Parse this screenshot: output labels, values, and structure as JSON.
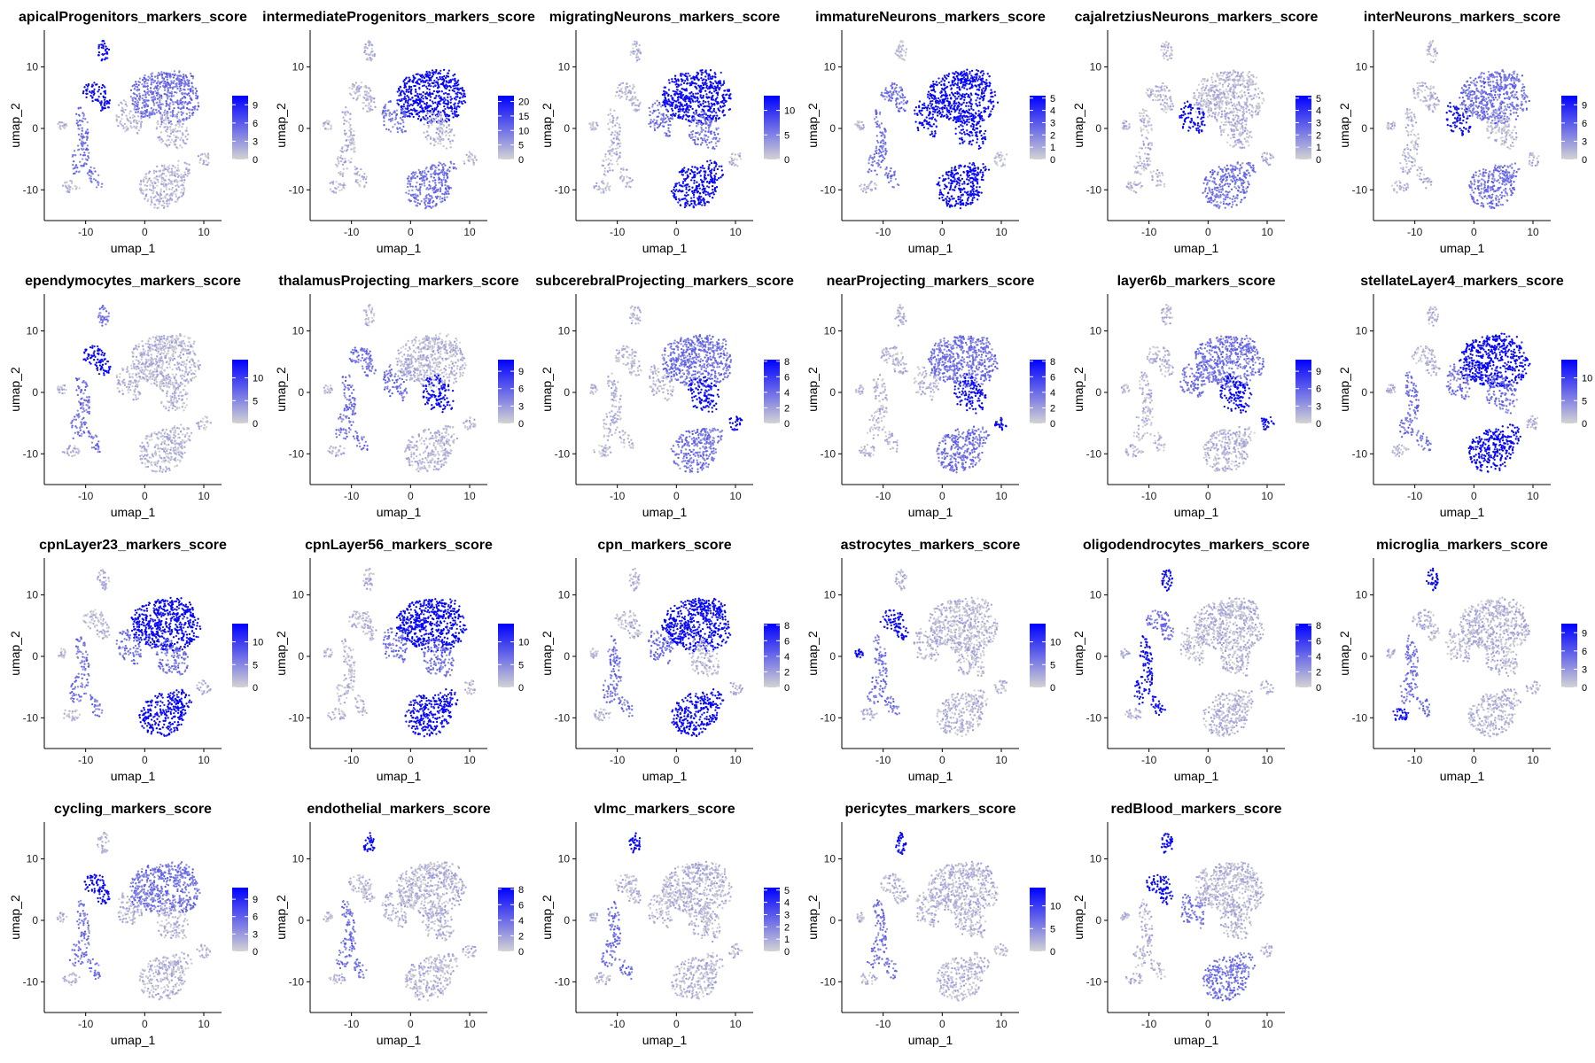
{
  "figure": {
    "rows": 4,
    "cols": 6
  },
  "chart_data": [
    {
      "type": "scatter",
      "title": "apicalProgenitors_markers_score",
      "xlabel": "umap_1",
      "ylabel": "umap_2",
      "xticks": [
        -10,
        0,
        10
      ],
      "yticks": [
        -10,
        0,
        10
      ],
      "xlim": [
        -17,
        13
      ],
      "ylim": [
        -15,
        16
      ],
      "legend_ticks": [
        0,
        3,
        6,
        9
      ],
      "score_max": 10.5,
      "high_regions": [
        "apical",
        "top-left-cluster"
      ],
      "mid_regions": [
        "left-branch",
        "large-top-cluster"
      ],
      "color_low": "#d3d3d3",
      "color_high": "#0000ff"
    },
    {
      "type": "scatter",
      "title": "intermediateProgenitors_markers_score",
      "xlabel": "umap_1",
      "ylabel": "umap_2",
      "xticks": [
        -10,
        0,
        10
      ],
      "yticks": [
        -10,
        0,
        10
      ],
      "xlim": [
        -17,
        13
      ],
      "ylim": [
        -15,
        16
      ],
      "legend_ticks": [
        0,
        5,
        10,
        15,
        20
      ],
      "score_max": 22,
      "high_regions": [
        "large-top-cluster"
      ],
      "mid_regions": [
        "middle-cluster",
        "bottom-cluster"
      ],
      "color_low": "#d3d3d3",
      "color_high": "#0000ff"
    },
    {
      "type": "scatter",
      "title": "migratingNeurons_markers_score",
      "xlabel": "umap_1",
      "ylabel": "umap_2",
      "xticks": [
        -10,
        0,
        10
      ],
      "yticks": [
        -10,
        0,
        10
      ],
      "xlim": [
        -17,
        13
      ],
      "ylim": [
        -15,
        16
      ],
      "legend_ticks": [
        0,
        5,
        10
      ],
      "score_max": 13,
      "high_regions": [
        "large-top-cluster",
        "bottom-cluster"
      ],
      "mid_regions": [
        "middle-cluster",
        "right-cluster"
      ],
      "color_low": "#d3d3d3",
      "color_high": "#0000ff"
    },
    {
      "type": "scatter",
      "title": "immatureNeurons_markers_score",
      "xlabel": "umap_1",
      "ylabel": "umap_2",
      "xticks": [
        -10,
        0,
        10
      ],
      "yticks": [
        -10,
        0,
        10
      ],
      "xlim": [
        -17,
        13
      ],
      "ylim": [
        -15,
        16
      ],
      "legend_ticks": [
        0,
        1,
        2,
        3,
        4,
        5
      ],
      "score_max": 5.2,
      "high_regions": [
        "large-top-cluster",
        "bottom-cluster",
        "middle-cluster",
        "right-cluster"
      ],
      "mid_regions": [
        "top-left-cluster",
        "left-branch"
      ],
      "color_low": "#d3d3d3",
      "color_high": "#0000ff"
    },
    {
      "type": "scatter",
      "title": "cajalretziusNeurons_markers_score",
      "xlabel": "umap_1",
      "ylabel": "umap_2",
      "xticks": [
        -10,
        0,
        10
      ],
      "yticks": [
        -10,
        0,
        10
      ],
      "xlim": [
        -17,
        13
      ],
      "ylim": [
        -15,
        16
      ],
      "legend_ticks": [
        0,
        1,
        2,
        3,
        4,
        5
      ],
      "score_max": 5.2,
      "high_regions": [
        "middle-cluster"
      ],
      "mid_regions": [
        "bottom-cluster"
      ],
      "color_low": "#d3d3d3",
      "color_high": "#0000ff"
    },
    {
      "type": "scatter",
      "title": "interNeurons_markers_score",
      "xlabel": "umap_1",
      "ylabel": "umap_2",
      "xticks": [
        -10,
        0,
        10
      ],
      "yticks": [
        -10,
        0,
        10
      ],
      "xlim": [
        -17,
        13
      ],
      "ylim": [
        -15,
        16
      ],
      "legend_ticks": [
        0,
        3,
        6,
        9
      ],
      "score_max": 10.5,
      "high_regions": [
        "middle-cluster"
      ],
      "mid_regions": [
        "bottom-cluster",
        "large-top-cluster"
      ],
      "color_low": "#d3d3d3",
      "color_high": "#0000ff"
    },
    {
      "type": "scatter",
      "title": "ependymocytes_markers_score",
      "xlabel": "umap_1",
      "ylabel": "umap_2",
      "xticks": [
        -10,
        0,
        10
      ],
      "yticks": [
        -10,
        0,
        10
      ],
      "xlim": [
        -17,
        13
      ],
      "ylim": [
        -15,
        16
      ],
      "legend_ticks": [
        0,
        5,
        10
      ],
      "score_max": 14,
      "high_regions": [
        "top-left-cluster"
      ],
      "mid_regions": [
        "left-branch",
        "apical"
      ],
      "color_low": "#d3d3d3",
      "color_high": "#0000ff"
    },
    {
      "type": "scatter",
      "title": "thalamusProjecting_markers_score",
      "xlabel": "umap_1",
      "ylabel": "umap_2",
      "xticks": [
        -10,
        0,
        10
      ],
      "yticks": [
        -10,
        0,
        10
      ],
      "xlim": [
        -17,
        13
      ],
      "ylim": [
        -15,
        16
      ],
      "legend_ticks": [
        0,
        3,
        6,
        9
      ],
      "score_max": 11,
      "high_regions": [
        "right-cluster"
      ],
      "mid_regions": [
        "middle-cluster",
        "left-branch",
        "top-left-cluster"
      ],
      "color_low": "#d3d3d3",
      "color_high": "#0000ff"
    },
    {
      "type": "scatter",
      "title": "subcerebralProjecting_markers_score",
      "xlabel": "umap_1",
      "ylabel": "umap_2",
      "xticks": [
        -10,
        0,
        10
      ],
      "yticks": [
        -10,
        0,
        10
      ],
      "xlim": [
        -17,
        13
      ],
      "ylim": [
        -15,
        16
      ],
      "legend_ticks": [
        0,
        2,
        4,
        6,
        8
      ],
      "score_max": 8.2,
      "high_regions": [
        "right-cluster",
        "far-right-blob"
      ],
      "mid_regions": [
        "large-top-cluster",
        "bottom-cluster"
      ],
      "color_low": "#d3d3d3",
      "color_high": "#0000ff"
    },
    {
      "type": "scatter",
      "title": "nearProjecting_markers_score",
      "xlabel": "umap_1",
      "ylabel": "umap_2",
      "xticks": [
        -10,
        0,
        10
      ],
      "yticks": [
        -10,
        0,
        10
      ],
      "xlim": [
        -17,
        13
      ],
      "ylim": [
        -15,
        16
      ],
      "legend_ticks": [
        0,
        2,
        4,
        6,
        8
      ],
      "score_max": 8.2,
      "high_regions": [
        "right-cluster",
        "far-right-blob"
      ],
      "mid_regions": [
        "large-top-cluster",
        "bottom-cluster"
      ],
      "color_low": "#d3d3d3",
      "color_high": "#0000ff"
    },
    {
      "type": "scatter",
      "title": "layer6b_markers_score",
      "xlabel": "umap_1",
      "ylabel": "umap_2",
      "xticks": [
        -10,
        0,
        10
      ],
      "yticks": [
        -10,
        0,
        10
      ],
      "xlim": [
        -17,
        13
      ],
      "ylim": [
        -15,
        16
      ],
      "legend_ticks": [
        0,
        3,
        6,
        9
      ],
      "score_max": 11,
      "high_regions": [
        "right-cluster",
        "far-right-blob"
      ],
      "mid_regions": [
        "middle-cluster",
        "large-top-cluster"
      ],
      "color_low": "#d3d3d3",
      "color_high": "#0000ff"
    },
    {
      "type": "scatter",
      "title": "stellateLayer4_markers_score",
      "xlabel": "umap_1",
      "ylabel": "umap_2",
      "xticks": [
        -10,
        0,
        10
      ],
      "yticks": [
        -10,
        0,
        10
      ],
      "xlim": [
        -17,
        13
      ],
      "ylim": [
        -15,
        16
      ],
      "legend_ticks": [
        0,
        5,
        10
      ],
      "score_max": 14,
      "high_regions": [
        "large-top-cluster",
        "bottom-cluster"
      ],
      "mid_regions": [
        "middle-cluster",
        "right-cluster",
        "left-branch"
      ],
      "color_low": "#d3d3d3",
      "color_high": "#0000ff"
    },
    {
      "type": "scatter",
      "title": "cpnLayer23_markers_score",
      "xlabel": "umap_1",
      "ylabel": "umap_2",
      "xticks": [
        -10,
        0,
        10
      ],
      "yticks": [
        -10,
        0,
        10
      ],
      "xlim": [
        -17,
        13
      ],
      "ylim": [
        -15,
        16
      ],
      "legend_ticks": [
        0,
        5,
        10
      ],
      "score_max": 14,
      "high_regions": [
        "large-top-cluster",
        "bottom-cluster"
      ],
      "mid_regions": [
        "middle-cluster",
        "right-cluster",
        "left-branch"
      ],
      "color_low": "#d3d3d3",
      "color_high": "#0000ff"
    },
    {
      "type": "scatter",
      "title": "cpnLayer56_markers_score",
      "xlabel": "umap_1",
      "ylabel": "umap_2",
      "xticks": [
        -10,
        0,
        10
      ],
      "yticks": [
        -10,
        0,
        10
      ],
      "xlim": [
        -17,
        13
      ],
      "ylim": [
        -15,
        16
      ],
      "legend_ticks": [
        0,
        5,
        10
      ],
      "score_max": 14,
      "high_regions": [
        "large-top-cluster",
        "bottom-cluster"
      ],
      "mid_regions": [
        "middle-cluster",
        "right-cluster"
      ],
      "color_low": "#d3d3d3",
      "color_high": "#0000ff"
    },
    {
      "type": "scatter",
      "title": "cpn_markers_score",
      "xlabel": "umap_1",
      "ylabel": "umap_2",
      "xticks": [
        -10,
        0,
        10
      ],
      "yticks": [
        -10,
        0,
        10
      ],
      "xlim": [
        -17,
        13
      ],
      "ylim": [
        -15,
        16
      ],
      "legend_ticks": [
        0,
        2,
        4,
        6,
        8
      ],
      "score_max": 8.2,
      "high_regions": [
        "large-top-cluster",
        "bottom-cluster"
      ],
      "mid_regions": [
        "middle-cluster",
        "left-branch"
      ],
      "color_low": "#d3d3d3",
      "color_high": "#0000ff"
    },
    {
      "type": "scatter",
      "title": "astrocytes_markers_score",
      "xlabel": "umap_1",
      "ylabel": "umap_2",
      "xticks": [
        -10,
        0,
        10
      ],
      "yticks": [
        -10,
        0,
        10
      ],
      "xlim": [
        -17,
        13
      ],
      "ylim": [
        -15,
        16
      ],
      "legend_ticks": [
        0,
        5,
        10
      ],
      "score_max": 14,
      "high_regions": [
        "top-left-cluster",
        "left-islet"
      ],
      "mid_regions": [
        "left-branch"
      ],
      "color_low": "#d3d3d3",
      "color_high": "#0000ff"
    },
    {
      "type": "scatter",
      "title": "oligodendrocytes_markers_score",
      "xlabel": "umap_1",
      "ylabel": "umap_2",
      "xticks": [
        -10,
        0,
        10
      ],
      "yticks": [
        -10,
        0,
        10
      ],
      "xlim": [
        -17,
        13
      ],
      "ylim": [
        -15,
        16
      ],
      "legend_ticks": [
        0,
        2,
        4,
        6,
        8
      ],
      "score_max": 8.2,
      "high_regions": [
        "left-branch",
        "apical"
      ],
      "mid_regions": [
        "top-left-cluster"
      ],
      "color_low": "#d3d3d3",
      "color_high": "#0000ff"
    },
    {
      "type": "scatter",
      "title": "microglia_markers_score",
      "xlabel": "umap_1",
      "ylabel": "umap_2",
      "xticks": [
        -10,
        0,
        10
      ],
      "yticks": [
        -10,
        0,
        10
      ],
      "xlim": [
        -17,
        13
      ],
      "ylim": [
        -15,
        16
      ],
      "legend_ticks": [
        0,
        3,
        6,
        9
      ],
      "score_max": 10.5,
      "high_regions": [
        "left-branch-tip",
        "apical"
      ],
      "mid_regions": [
        "left-branch"
      ],
      "color_low": "#d3d3d3",
      "color_high": "#0000ff"
    },
    {
      "type": "scatter",
      "title": "cycling_markers_score",
      "xlabel": "umap_1",
      "ylabel": "umap_2",
      "xticks": [
        -10,
        0,
        10
      ],
      "yticks": [
        -10,
        0,
        10
      ],
      "xlim": [
        -17,
        13
      ],
      "ylim": [
        -15,
        16
      ],
      "legend_ticks": [
        0,
        3,
        6,
        9
      ],
      "score_max": 11,
      "high_regions": [
        "top-left-cluster"
      ],
      "mid_regions": [
        "large-top-cluster",
        "left-branch"
      ],
      "color_low": "#d3d3d3",
      "color_high": "#0000ff"
    },
    {
      "type": "scatter",
      "title": "endothelial_markers_score",
      "xlabel": "umap_1",
      "ylabel": "umap_2",
      "xticks": [
        -10,
        0,
        10
      ],
      "yticks": [
        -10,
        0,
        10
      ],
      "xlim": [
        -17,
        13
      ],
      "ylim": [
        -15,
        16
      ],
      "legend_ticks": [
        0,
        2,
        4,
        6,
        8
      ],
      "score_max": 8.2,
      "high_regions": [
        "apical"
      ],
      "mid_regions": [
        "left-branch"
      ],
      "color_low": "#d3d3d3",
      "color_high": "#0000ff"
    },
    {
      "type": "scatter",
      "title": "vlmc_markers_score",
      "xlabel": "umap_1",
      "ylabel": "umap_2",
      "xticks": [
        -10,
        0,
        10
      ],
      "yticks": [
        -10,
        0,
        10
      ],
      "xlim": [
        -17,
        13
      ],
      "ylim": [
        -15,
        16
      ],
      "legend_ticks": [
        0,
        1,
        2,
        3,
        4,
        5
      ],
      "score_max": 5.2,
      "high_regions": [
        "apical"
      ],
      "mid_regions": [
        "left-branch"
      ],
      "color_low": "#d3d3d3",
      "color_high": "#0000ff"
    },
    {
      "type": "scatter",
      "title": "pericytes_markers_score",
      "xlabel": "umap_1",
      "ylabel": "umap_2",
      "xticks": [
        -10,
        0,
        10
      ],
      "yticks": [
        -10,
        0,
        10
      ],
      "xlim": [
        -17,
        13
      ],
      "ylim": [
        -15,
        16
      ],
      "legend_ticks": [
        0,
        5,
        10
      ],
      "score_max": 14,
      "high_regions": [
        "apical"
      ],
      "mid_regions": [
        "left-branch"
      ],
      "color_low": "#d3d3d3",
      "color_high": "#0000ff"
    },
    {
      "type": "scatter",
      "title": "redBlood_markers_score",
      "xlabel": "umap_1",
      "ylabel": "umap_2",
      "xticks": [
        -10,
        0,
        10
      ],
      "yticks": [
        -10,
        0,
        10
      ],
      "xlim": [
        -17,
        13
      ],
      "ylim": [
        -15,
        16
      ],
      "legend_ticks": [],
      "score_max": 0,
      "high_regions": [
        "apical",
        "top-left-cluster"
      ],
      "mid_regions": [
        "middle-cluster",
        "bottom-cluster"
      ],
      "color_low": "#d3d3d3",
      "color_high": "#0000ff"
    }
  ]
}
